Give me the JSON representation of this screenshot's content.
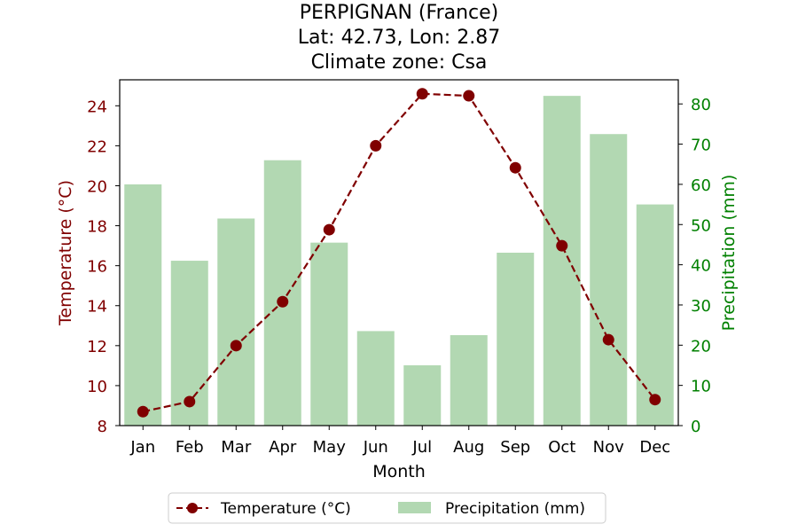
{
  "chart_data": {
    "type": "bar+line",
    "title": [
      "PERPIGNAN (France)",
      "Lat: 42.73, Lon: 2.87",
      "Climate zone: Csa"
    ],
    "xlabel": "Month",
    "categories": [
      "Jan",
      "Feb",
      "Mar",
      "Apr",
      "May",
      "Jun",
      "Jul",
      "Aug",
      "Sep",
      "Oct",
      "Nov",
      "Dec"
    ],
    "temperature": {
      "name": "Temperature (°C)",
      "axis_label": "Temperature (°C)",
      "color": "#800000",
      "values": [
        8.7,
        9.2,
        12.0,
        14.2,
        17.8,
        22.0,
        24.6,
        24.5,
        20.9,
        17.0,
        12.3,
        9.3
      ],
      "ylim": [
        8,
        25.3
      ],
      "ticks": [
        8,
        10,
        12,
        14,
        16,
        18,
        20,
        22,
        24
      ]
    },
    "precipitation": {
      "name": "Precipitation (mm)",
      "axis_label": "Precipitation (mm)",
      "color": "#b2d8b2",
      "axis_color": "#008000",
      "values": [
        60,
        41,
        51.5,
        66,
        45.5,
        23.5,
        15,
        22.5,
        43,
        82,
        72.5,
        55
      ],
      "ylim": [
        0,
        86
      ],
      "ticks": [
        0,
        10,
        20,
        30,
        40,
        50,
        60,
        70,
        80
      ]
    },
    "legend": {
      "placement": "bottom-center",
      "entries": [
        "Temperature (°C)",
        "Precipitation (mm)"
      ]
    },
    "grid": false
  }
}
